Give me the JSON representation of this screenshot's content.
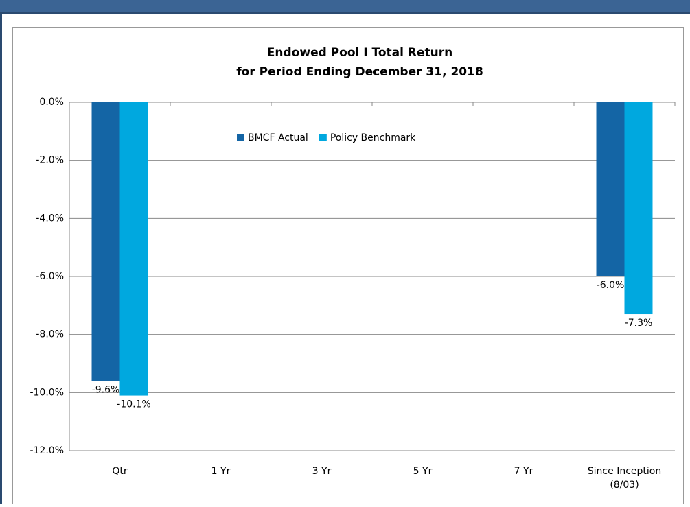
{
  "chart_data": {
    "type": "bar",
    "title": "Endowed Pool I Total Return",
    "subtitle": "for Period Ending December 31, 2018",
    "categories": [
      "Qtr",
      "1 Yr",
      "3 Yr",
      "5 Yr",
      "7 Yr",
      "Since Inception\n(8/03)"
    ],
    "series": [
      {
        "name": "BMCF Actual",
        "color": "#1465a5",
        "values": [
          -9.6,
          null,
          null,
          null,
          null,
          -6.0
        ],
        "value_labels": [
          "-9.6%",
          null,
          null,
          null,
          null,
          "-6.0%"
        ]
      },
      {
        "name": "Policy Benchmark",
        "color": "#00a8df",
        "values": [
          -10.1,
          null,
          null,
          null,
          null,
          -7.3
        ],
        "value_labels": [
          "-10.1%",
          null,
          null,
          null,
          null,
          "-7.3%"
        ]
      }
    ],
    "ylim": [
      -12,
      0
    ],
    "yticks": [
      {
        "value": 0,
        "label": "0.0%"
      },
      {
        "value": -2,
        "label": "-2.0%"
      },
      {
        "value": -4,
        "label": "-4.0%"
      },
      {
        "value": -6,
        "label": "-6.0%"
      },
      {
        "value": -8,
        "label": "-8.0%"
      },
      {
        "value": -10,
        "label": "-10.0%"
      },
      {
        "value": -12,
        "label": "-12.0%"
      }
    ],
    "grid": true
  }
}
